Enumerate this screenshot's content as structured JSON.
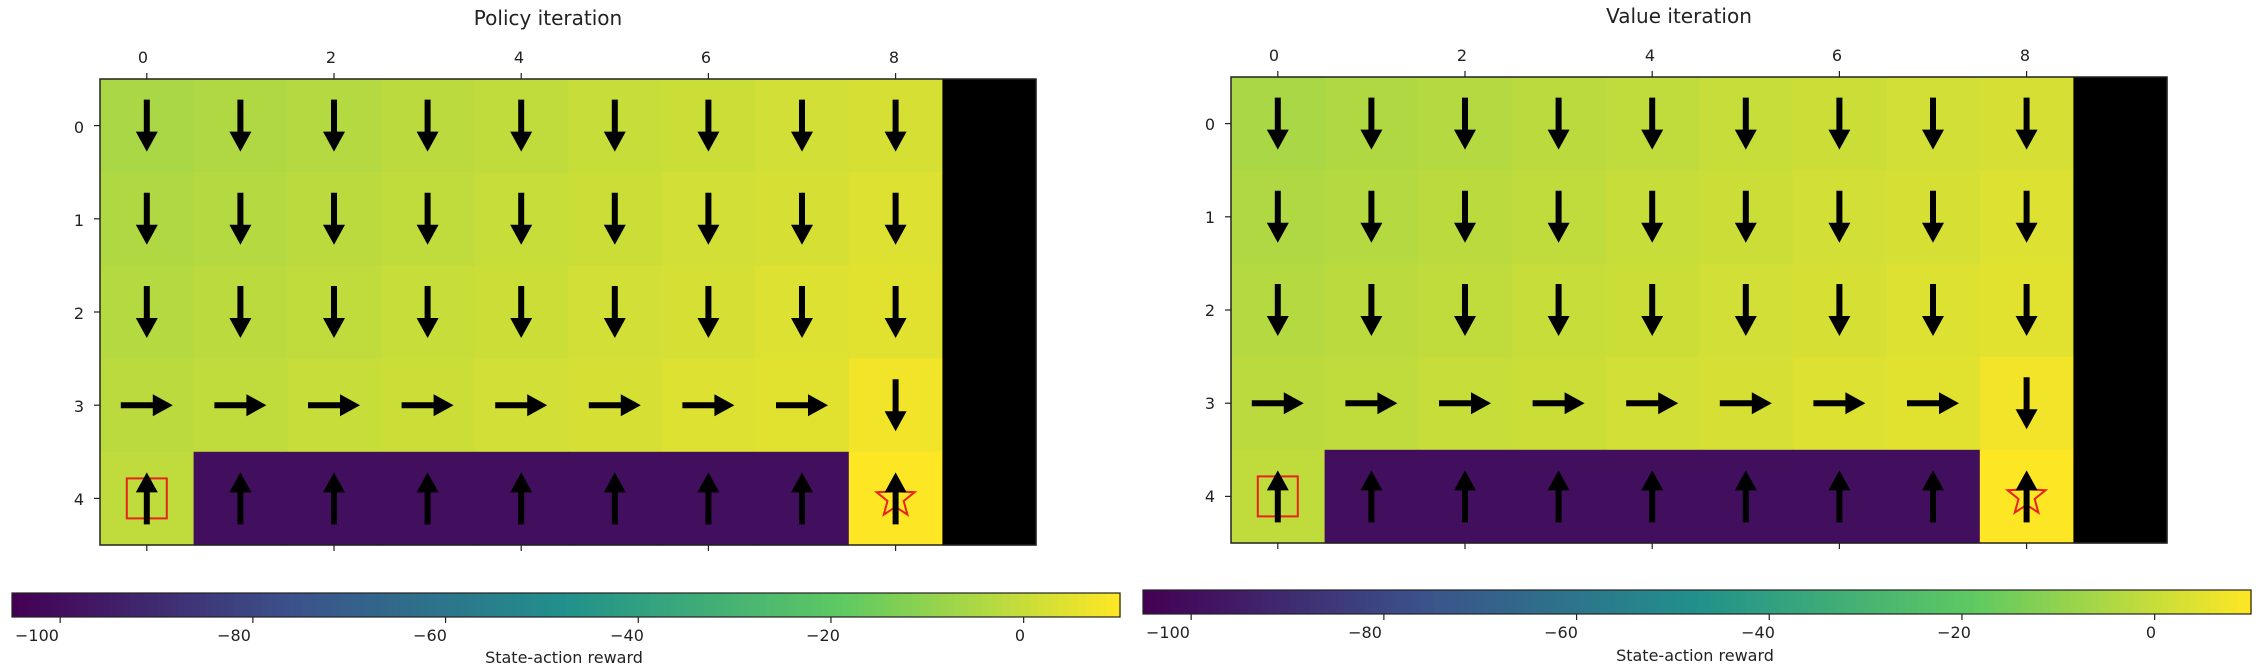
{
  "panels": [
    {
      "title": "Policy iteration",
      "colorbar_label": "State-action reward",
      "xticks": [
        "0",
        "2",
        "4",
        "6",
        "8"
      ],
      "yticks": [
        "0",
        "1",
        "2",
        "3",
        "4"
      ],
      "cbar_ticks": [
        "−100",
        "−80",
        "−60",
        "−40",
        "−20",
        "0"
      ]
    },
    {
      "title": "Value iteration",
      "colorbar_label": "State-action reward",
      "xticks": [
        "0",
        "2",
        "4",
        "6",
        "8"
      ],
      "yticks": [
        "0",
        "1",
        "2",
        "3",
        "4"
      ],
      "cbar_ticks": [
        "−100",
        "−80",
        "−60",
        "−40",
        "−20",
        "0"
      ]
    }
  ],
  "chart_data": [
    {
      "type": "heatmap",
      "title": "Policy iteration",
      "rows": 5,
      "cols": 10,
      "xticks": [
        0,
        2,
        4,
        6,
        8
      ],
      "yticks": [
        0,
        1,
        2,
        3,
        4
      ],
      "colormap": "viridis",
      "colorbar": {
        "label": "State-action reward",
        "range": [
          -105,
          10
        ],
        "ticks": [
          -100,
          -80,
          -60,
          -40,
          -20,
          0
        ],
        "placement": "bottom"
      },
      "values": [
        [
          -5,
          -4,
          -3,
          -2,
          -1,
          0,
          1,
          2,
          3,
          null
        ],
        [
          -4,
          -3,
          -2,
          -1,
          0,
          1,
          2,
          3,
          4,
          null
        ],
        [
          -3,
          -2,
          -1,
          0,
          1,
          2,
          3,
          4,
          5,
          null
        ],
        [
          -2,
          -1,
          0,
          1,
          2,
          3,
          4,
          5,
          8,
          null
        ],
        [
          -1,
          -100,
          -100,
          -100,
          -100,
          -100,
          -100,
          -100,
          10,
          null
        ]
      ],
      "policy": [
        [
          "down",
          "down",
          "down",
          "down",
          "down",
          "down",
          "down",
          "down",
          "down",
          ""
        ],
        [
          "down",
          "down",
          "down",
          "down",
          "down",
          "down",
          "down",
          "down",
          "down",
          ""
        ],
        [
          "down",
          "down",
          "down",
          "down",
          "down",
          "down",
          "down",
          "down",
          "down",
          ""
        ],
        [
          "right",
          "right",
          "right",
          "right",
          "right",
          "right",
          "right",
          "right",
          "down",
          ""
        ],
        [
          "up",
          "up",
          "up",
          "up",
          "up",
          "up",
          "up",
          "up",
          "up",
          ""
        ]
      ],
      "start": [
        4,
        0
      ],
      "goal": [
        4,
        8
      ]
    },
    {
      "type": "heatmap",
      "title": "Value iteration",
      "rows": 5,
      "cols": 10,
      "xticks": [
        0,
        2,
        4,
        6,
        8
      ],
      "yticks": [
        0,
        1,
        2,
        3,
        4
      ],
      "colormap": "viridis",
      "colorbar": {
        "label": "State-action reward",
        "range": [
          -105,
          10
        ],
        "ticks": [
          -100,
          -80,
          -60,
          -40,
          -20,
          0
        ],
        "placement": "bottom"
      },
      "values": [
        [
          -5,
          -4,
          -3,
          -2,
          -1,
          0,
          1,
          2,
          3,
          null
        ],
        [
          -4,
          -3,
          -2,
          -1,
          0,
          1,
          2,
          3,
          4,
          null
        ],
        [
          -3,
          -2,
          -1,
          0,
          1,
          2,
          3,
          4,
          5,
          null
        ],
        [
          -2,
          -1,
          0,
          1,
          2,
          3,
          4,
          5,
          8,
          null
        ],
        [
          -1,
          -100,
          -100,
          -100,
          -100,
          -100,
          -100,
          -100,
          10,
          null
        ]
      ],
      "policy": [
        [
          "down",
          "down",
          "down",
          "down",
          "down",
          "down",
          "down",
          "down",
          "down",
          ""
        ],
        [
          "down",
          "down",
          "down",
          "down",
          "down",
          "down",
          "down",
          "down",
          "down",
          ""
        ],
        [
          "down",
          "down",
          "down",
          "down",
          "down",
          "down",
          "down",
          "down",
          "down",
          ""
        ],
        [
          "right",
          "right",
          "right",
          "right",
          "right",
          "right",
          "right",
          "right",
          "down",
          ""
        ],
        [
          "up",
          "up",
          "up",
          "up",
          "up",
          "up",
          "up",
          "up",
          "up",
          ""
        ]
      ],
      "start": [
        4,
        0
      ],
      "goal": [
        4,
        8
      ]
    }
  ]
}
